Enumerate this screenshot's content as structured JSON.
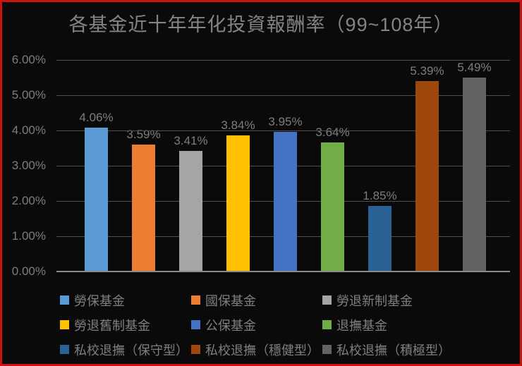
{
  "frame": {
    "background": "#0a0a0a",
    "border_color": "#cc1111"
  },
  "chart_data": {
    "type": "bar",
    "title": "各基金近十年年化投資報酬率（99~108年）",
    "categories": [
      "勞保基金",
      "國保基金",
      "勞退新制基金",
      "勞退舊制基金",
      "公保基金",
      "退撫基金",
      "私校退撫（保守型）",
      "私校退撫（穩健型）",
      "私校退撫（積極型）"
    ],
    "values": [
      4.06,
      3.59,
      3.41,
      3.84,
      3.95,
      3.64,
      1.85,
      5.39,
      5.49
    ],
    "value_labels": [
      "4.06%",
      "3.59%",
      "3.41%",
      "3.84%",
      "3.95%",
      "3.64%",
      "1.85%",
      "5.39%",
      "5.49%"
    ],
    "bar_colors": [
      "#5B9BD5",
      "#ED7D31",
      "#A5A5A5",
      "#FFC000",
      "#4472C4",
      "#70AD47",
      "#2A6296",
      "#9E480E",
      "#636363"
    ],
    "ytick_labels": [
      "0.00%",
      "1.00%",
      "2.00%",
      "3.00%",
      "4.00%",
      "5.00%",
      "6.00%"
    ],
    "ylim": [
      0,
      6
    ],
    "grid": true,
    "legend_position": "bottom",
    "xlabel": "",
    "ylabel": ""
  },
  "styles": {
    "title_color": "#848484",
    "tick_color": "#7d7d7d",
    "value_label_color": "#7d7d7d",
    "grid_color": "#4f4f4f",
    "axis_color": "#8c8c8c",
    "legend_text_color": "#7f7f7f"
  }
}
